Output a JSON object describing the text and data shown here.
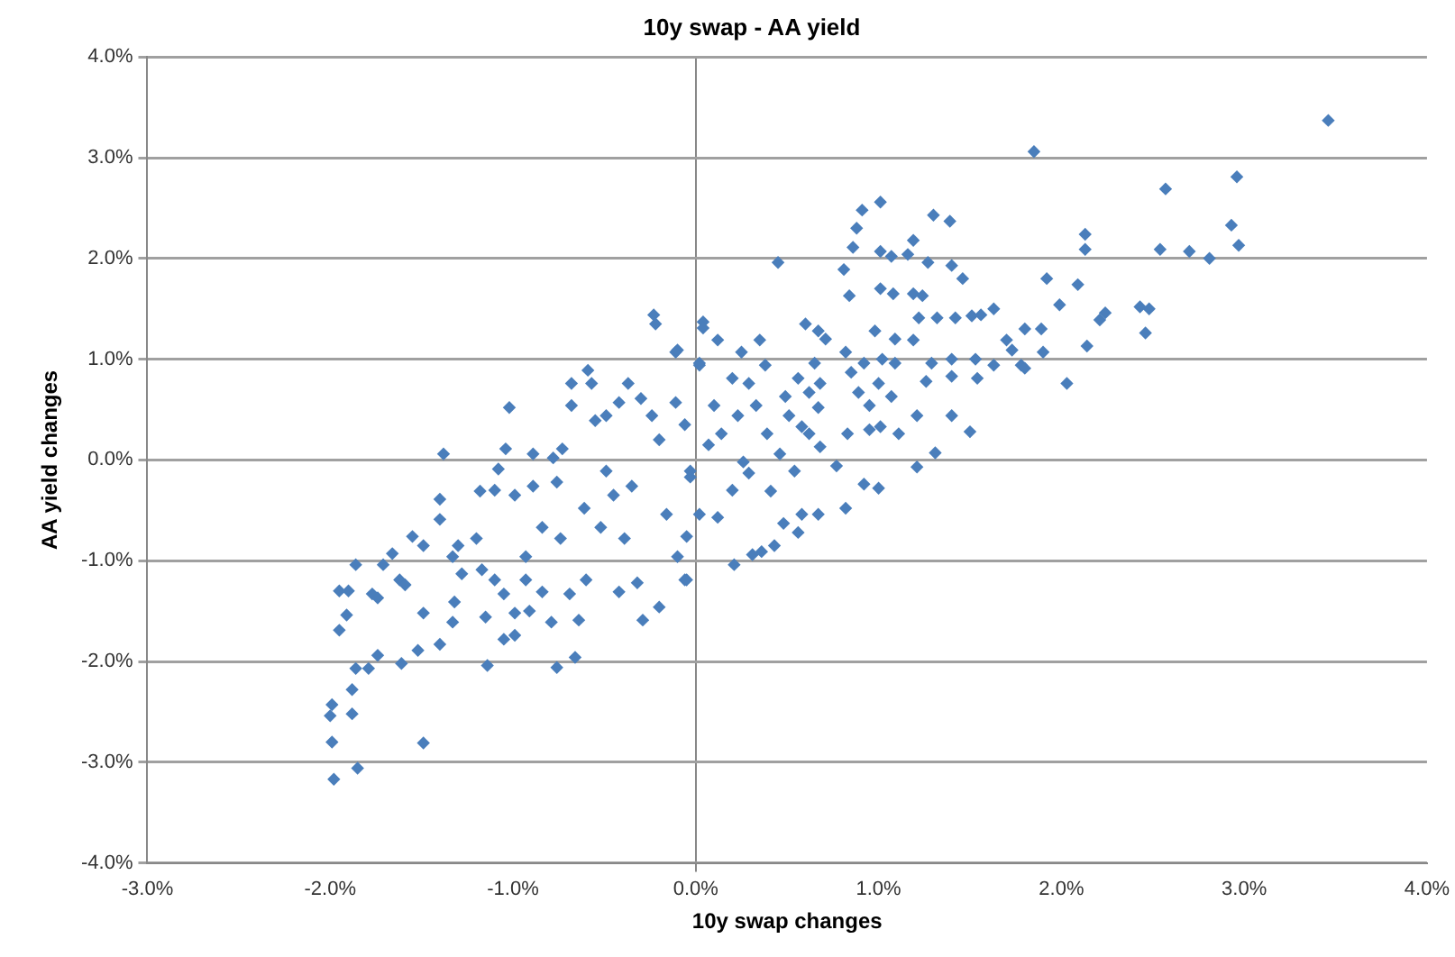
{
  "chart_data": {
    "type": "scatter",
    "title": "10y swap - AA yield",
    "xlabel": "10y swap changes",
    "ylabel": "AA yield changes",
    "xlim": [
      -3,
      4
    ],
    "ylim": [
      -4,
      4
    ],
    "xticks": [
      {
        "value": -3,
        "label": "-3.0%"
      },
      {
        "value": -2,
        "label": "-2.0%"
      },
      {
        "value": -1,
        "label": "-1.0%"
      },
      {
        "value": 0,
        "label": "0.0%"
      },
      {
        "value": 1,
        "label": "1.0%"
      },
      {
        "value": 2,
        "label": "2.0%"
      },
      {
        "value": 3,
        "label": "3.0%"
      },
      {
        "value": 4,
        "label": "4.0%"
      }
    ],
    "yticks": [
      {
        "value": -4,
        "label": "-4.0%"
      },
      {
        "value": -3,
        "label": "-3.0%"
      },
      {
        "value": -2,
        "label": "-2.0%"
      },
      {
        "value": -1,
        "label": "-1.0%"
      },
      {
        "value": 0,
        "label": "0.0%"
      },
      {
        "value": 1,
        "label": "1.0%"
      },
      {
        "value": 2,
        "label": "2.0%"
      },
      {
        "value": 3,
        "label": "3.0%"
      },
      {
        "value": 4,
        "label": "4.0%"
      }
    ],
    "grid": "y",
    "marker": "diamond",
    "legend": false,
    "series": [
      {
        "color": "#4a7ebb",
        "x": [
          -1.98,
          -1.85,
          -1.99,
          -2.0,
          -1.99,
          -1.88,
          -1.88,
          -1.86,
          -1.95,
          -1.91,
          -1.95,
          -1.9,
          -1.86,
          -1.77,
          -1.74,
          -1.79,
          -1.74,
          -1.61,
          -1.71,
          -1.66,
          -1.62,
          -1.59,
          -1.55,
          -1.49,
          -1.49,
          -1.49,
          -1.52,
          -1.4,
          -1.4,
          -1.38,
          -1.4,
          -1.33,
          -1.3,
          -1.28,
          -1.32,
          -1.33,
          -1.2,
          -1.18,
          -1.17,
          -1.15,
          -1.14,
          -1.1,
          -1.05,
          -1.05,
          -1.02,
          -1.08,
          -1.04,
          -1.1,
          -0.99,
          -0.99,
          -0.99,
          -0.93,
          -0.93,
          -0.91,
          -0.89,
          -0.89,
          -0.84,
          -0.84,
          -0.79,
          -0.76,
          -0.78,
          -0.76,
          -0.74,
          -0.73,
          -0.68,
          -0.68,
          -0.69,
          -0.66,
          -0.64,
          -0.61,
          -0.59,
          -0.57,
          -0.55,
          -0.6,
          -0.52,
          -0.49,
          -0.49,
          -0.45,
          -0.42,
          -0.42,
          -0.39,
          -0.37,
          -0.35,
          -0.32,
          -0.3,
          -0.29,
          -0.24,
          -0.23,
          -0.22,
          -0.2,
          -0.2,
          -0.16,
          -0.11,
          -0.11,
          -0.06,
          -0.05,
          -0.03,
          0.02,
          0.04,
          1.01,
          0.91,
          0.88,
          0.86,
          1.3,
          1.39,
          1.19,
          1.01,
          1.07,
          1.16,
          1.27,
          1.4,
          1.46,
          0.45,
          0.81,
          0.84,
          1.01,
          1.08,
          1.19,
          1.24,
          1.22,
          1.32,
          1.42,
          1.51,
          1.56,
          1.63,
          0.6,
          0.67,
          0.71,
          0.04,
          0.12,
          -0.1,
          0.98,
          1.09,
          1.19,
          1.7,
          1.73,
          0.25,
          0.35,
          0.82,
          0.02,
          0.38,
          0.65,
          0.85,
          0.92,
          1.02,
          1.09,
          1.29,
          1.4,
          1.53,
          1.63,
          1.78,
          1.4,
          1.54,
          1.26,
          0.2,
          0.29,
          0.56,
          0.62,
          0.68,
          0.89,
          1.0,
          1.07,
          0.49,
          0.33,
          0.51,
          0.67,
          0.95,
          1.21,
          1.4,
          1.5,
          1.31,
          1.21,
          1.01,
          1.11,
          0.95,
          0.83,
          0.58,
          0.62,
          0.39,
          0.23,
          0.1,
          0.14,
          -0.06,
          0.68,
          0.77,
          1.0,
          0.92,
          0.82,
          0.67,
          0.58,
          0.56,
          0.48,
          0.36,
          0.31,
          0.43,
          0.21,
          -0.05,
          -0.1,
          0.26,
          0.29,
          0.41,
          0.2,
          0.12,
          0.02,
          0.54,
          0.46,
          0.07,
          -0.03,
          3.46,
          1.85,
          2.96,
          2.57,
          2.93,
          2.97,
          2.13,
          2.13,
          2.54,
          2.7,
          2.81,
          1.92,
          2.09,
          1.99,
          2.24,
          2.21,
          2.43,
          2.48,
          2.46,
          1.8,
          1.89,
          1.9,
          2.14,
          1.8,
          2.03
        ],
        "values": [
          -3.17,
          -3.06,
          -2.8,
          -2.54,
          -2.43,
          -2.52,
          -2.28,
          -2.07,
          -1.69,
          -1.54,
          -1.3,
          -1.3,
          -1.04,
          -1.33,
          -1.37,
          -2.07,
          -1.94,
          -2.02,
          -1.04,
          -0.93,
          -1.19,
          -1.24,
          -0.76,
          -0.85,
          -2.81,
          -1.52,
          -1.89,
          -0.39,
          -0.59,
          0.06,
          -1.83,
          -0.96,
          -0.85,
          -1.13,
          -1.41,
          -1.61,
          -0.78,
          -0.31,
          -1.09,
          -1.56,
          -2.04,
          -1.19,
          -1.33,
          -1.78,
          0.52,
          -0.09,
          0.11,
          -0.3,
          -0.35,
          -1.52,
          -1.74,
          -0.96,
          -1.19,
          -1.5,
          0.06,
          -0.26,
          -0.67,
          -1.31,
          -1.61,
          -2.06,
          0.02,
          -0.22,
          -0.78,
          0.11,
          0.76,
          0.54,
          -1.33,
          -1.96,
          -1.59,
          -0.48,
          0.89,
          0.76,
          0.39,
          -1.19,
          -0.67,
          0.44,
          -0.11,
          -0.35,
          0.57,
          -1.31,
          -0.78,
          0.76,
          -0.26,
          -1.22,
          0.61,
          -1.59,
          0.44,
          1.44,
          1.35,
          -1.46,
          0.2,
          -0.54,
          1.07,
          0.57,
          -1.19,
          -0.76,
          -0.17,
          0.94,
          1.37,
          2.56,
          2.48,
          2.3,
          2.11,
          2.43,
          2.37,
          2.18,
          2.07,
          2.02,
          2.04,
          1.96,
          1.93,
          1.8,
          1.96,
          1.89,
          1.63,
          1.7,
          1.65,
          1.65,
          1.63,
          1.41,
          1.41,
          1.41,
          1.43,
          1.44,
          1.5,
          1.35,
          1.28,
          1.2,
          1.31,
          1.19,
          1.09,
          1.28,
          1.2,
          1.19,
          1.19,
          1.09,
          1.07,
          1.19,
          1.07,
          0.96,
          0.94,
          0.96,
          0.87,
          0.96,
          1.0,
          0.96,
          0.96,
          1.0,
          1.0,
          0.94,
          0.94,
          0.83,
          0.81,
          0.78,
          0.81,
          0.76,
          0.81,
          0.67,
          0.76,
          0.67,
          0.76,
          0.63,
          0.63,
          0.54,
          0.44,
          0.52,
          0.54,
          0.44,
          0.44,
          0.28,
          0.07,
          -0.07,
          0.33,
          0.26,
          0.3,
          0.26,
          0.33,
          0.26,
          0.26,
          0.44,
          0.54,
          0.26,
          0.35,
          0.13,
          -0.06,
          -0.28,
          -0.24,
          -0.48,
          -0.54,
          -0.54,
          -0.72,
          -0.63,
          -0.91,
          -0.94,
          -0.85,
          -1.04,
          -1.19,
          -0.96,
          -0.02,
          -0.13,
          -0.31,
          -0.3,
          -0.57,
          -0.54,
          -0.11,
          0.06,
          0.15,
          -0.11,
          3.37,
          3.06,
          2.81,
          2.69,
          2.33,
          2.13,
          2.24,
          2.09,
          2.09,
          2.07,
          2.0,
          1.8,
          1.74,
          1.54,
          1.46,
          1.39,
          1.52,
          1.5,
          1.26,
          1.3,
          1.3,
          1.07,
          1.13,
          0.91,
          0.76
        ]
      }
    ]
  }
}
